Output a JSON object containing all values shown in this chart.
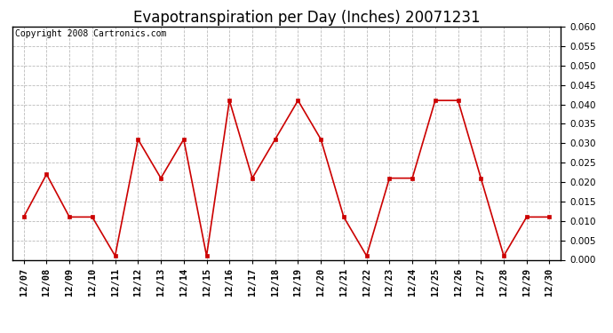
{
  "title": "Evapotranspiration per Day (Inches) 20071231",
  "copyright_text": "Copyright 2008 Cartronics.com",
  "dates": [
    "12/07",
    "12/08",
    "12/09",
    "12/10",
    "12/11",
    "12/12",
    "12/13",
    "12/14",
    "12/15",
    "12/16",
    "12/17",
    "12/18",
    "12/19",
    "12/20",
    "12/21",
    "12/22",
    "12/23",
    "12/24",
    "12/25",
    "12/26",
    "12/27",
    "12/28",
    "12/29",
    "12/30"
  ],
  "values": [
    0.011,
    0.022,
    0.011,
    0.011,
    0.001,
    0.031,
    0.021,
    0.031,
    0.001,
    0.041,
    0.021,
    0.031,
    0.041,
    0.031,
    0.011,
    0.001,
    0.021,
    0.021,
    0.041,
    0.041,
    0.021,
    0.001,
    0.011,
    0.011
  ],
  "line_color": "#cc0000",
  "marker": "s",
  "marker_size": 3,
  "ylim": [
    0.0,
    0.06
  ],
  "yticks": [
    0.0,
    0.005,
    0.01,
    0.015,
    0.02,
    0.025,
    0.03,
    0.035,
    0.04,
    0.045,
    0.05,
    0.055,
    0.06
  ],
  "grid_color": "#bbbbbb",
  "background_color": "#ffffff",
  "title_fontsize": 12,
  "copyright_fontsize": 7,
  "tick_fontsize": 7.5
}
